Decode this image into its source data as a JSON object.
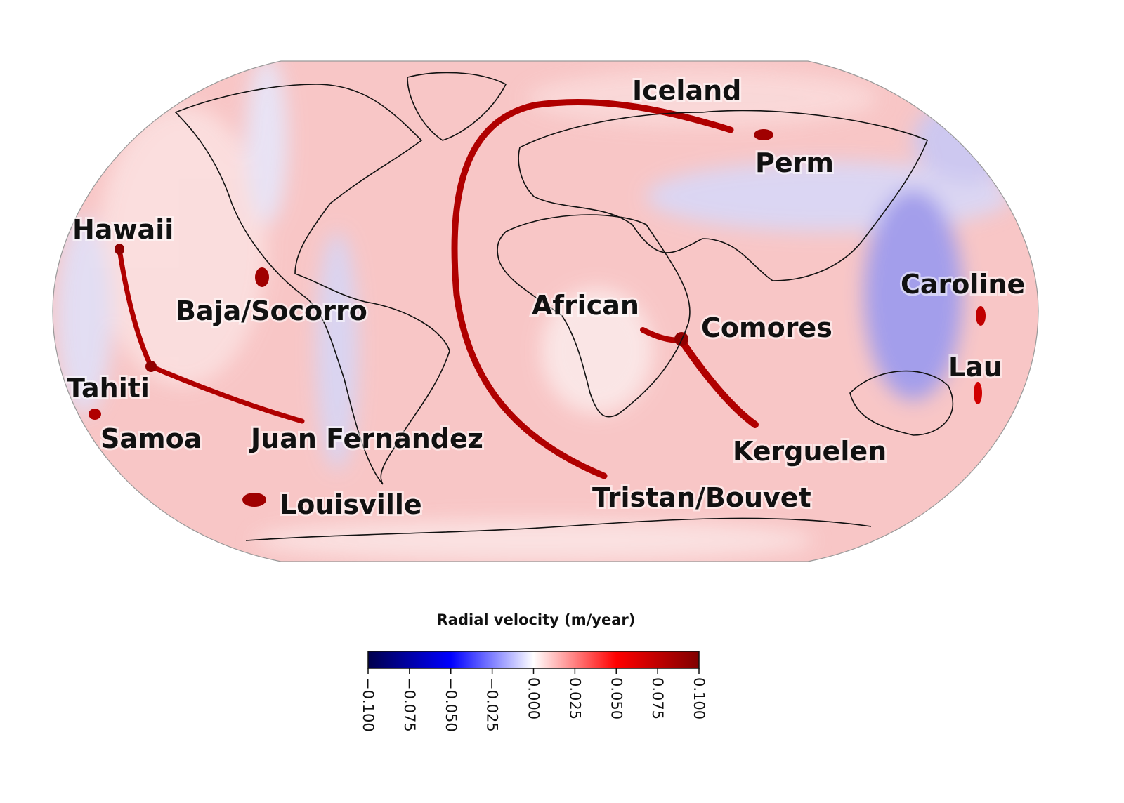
{
  "map": {
    "projection": "robinson",
    "hotspot_labels": [
      {
        "name": "Iceland"
      },
      {
        "name": "Perm"
      },
      {
        "name": "Hawaii"
      },
      {
        "name": "Baja/Socorro"
      },
      {
        "name": "Tahiti"
      },
      {
        "name": "Samoa"
      },
      {
        "name": "Juan Fernandez"
      },
      {
        "name": "Louisville"
      },
      {
        "name": "African"
      },
      {
        "name": "Comores"
      },
      {
        "name": "Caroline"
      },
      {
        "name": "Lau"
      },
      {
        "name": "Kerguelen"
      },
      {
        "name": "Tristan/Bouvet"
      }
    ]
  },
  "colorbar": {
    "title": "Radial velocity (m/year)",
    "colormap": "seismic",
    "range": [
      -0.1,
      0.1
    ],
    "ticks": [
      "−0.100",
      "−0.075",
      "−0.050",
      "−0.025",
      "0.000",
      "0.025",
      "0.050",
      "0.075",
      "0.100"
    ],
    "colors": [
      "#00004c",
      "#0000ff",
      "#ffffff",
      "#ff0000",
      "#800000"
    ]
  }
}
